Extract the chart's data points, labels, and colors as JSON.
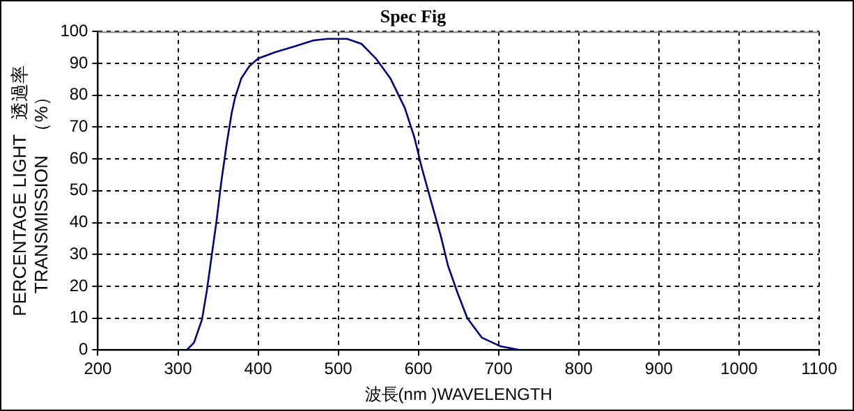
{
  "chart_data": {
    "type": "line",
    "title": "Spec Fig",
    "xlabel": "波長(nm )WAVELENGTH",
    "ylabel": "PERCENTAGE LIGHT   透過率\nTRANSMISSION   （%）",
    "x": [
      311,
      320,
      330,
      336,
      342,
      348,
      354,
      361,
      367,
      371,
      379,
      389,
      400,
      421,
      445,
      469,
      487,
      511,
      529,
      547,
      565,
      583,
      595,
      604,
      616,
      628,
      637,
      649,
      661,
      679,
      702,
      726
    ],
    "series": [
      {
        "color": "#000080",
        "values": [
          0,
          2.3,
          9.6,
          18.6,
          29.5,
          40.3,
          52.7,
          65.1,
          74.4,
          79,
          85.3,
          89.1,
          91.5,
          93.5,
          95.3,
          97.2,
          97.7,
          97.7,
          96.1,
          91.5,
          85.3,
          76,
          66.7,
          57.4,
          46.5,
          35.7,
          26.4,
          17.8,
          10,
          3.9,
          1.2,
          0
        ]
      }
    ],
    "xlim": [
      200,
      1100
    ],
    "xticks": [
      200,
      300,
      400,
      500,
      600,
      700,
      800,
      900,
      1000,
      1100
    ],
    "ylim": [
      0,
      100
    ],
    "yticks": [
      0,
      10,
      20,
      30,
      40,
      50,
      60,
      70,
      80,
      90,
      100
    ],
    "grid": true,
    "legend": false,
    "marker": "none",
    "line_style": "solid"
  }
}
